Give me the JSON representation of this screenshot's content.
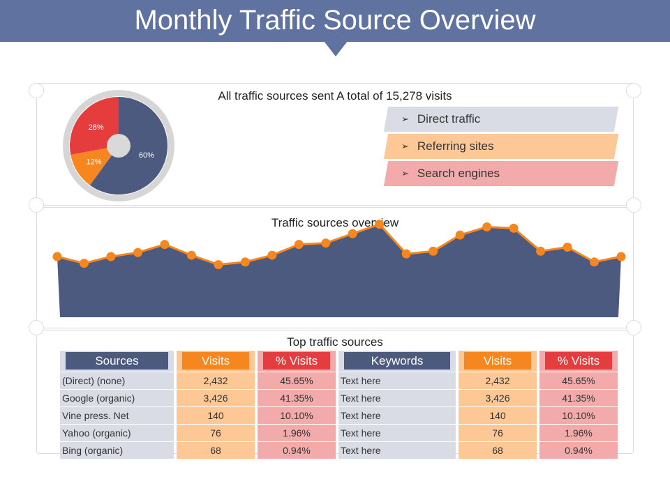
{
  "title": "Monthly Traffic Source Overview",
  "colors": {
    "header": "#5f72a0",
    "navy": "#4b5a7e",
    "orange": "#f6861f",
    "red": "#e53d3d",
    "grey_light": "#d9dce5",
    "orange_light": "#fdc896",
    "red_light": "#f2aaaa"
  },
  "summary": {
    "heading": "All traffic sources sent A total of 15,278 visits"
  },
  "legend": [
    {
      "label": "Direct traffic",
      "color": "#d9dce5"
    },
    {
      "label": "Referring sites",
      "color": "#fdc896"
    },
    {
      "label": "Search engines",
      "color": "#f2aaaa"
    }
  ],
  "overview": {
    "heading": "Traffic sources overview"
  },
  "top_sources": {
    "heading": "Top traffic sources",
    "left_headers": [
      "Sources",
      "Visits",
      "% Visits"
    ],
    "left_rows": [
      [
        "(Direct) (none)",
        "2,432",
        "45.65%"
      ],
      [
        "Google (organic)",
        "3,426",
        "41.35%"
      ],
      [
        "Vine press. Net",
        "140",
        "10.10%"
      ],
      [
        "Yahoo (organic)",
        "76",
        "1.96%"
      ],
      [
        "Bing (organic)",
        "68",
        "0.94%"
      ]
    ],
    "right_headers": [
      "Keywords",
      "Visits",
      "% Visits"
    ],
    "right_rows": [
      [
        "Text here",
        "2,432",
        "45.65%"
      ],
      [
        "Text here",
        "3,426",
        "41.35%"
      ],
      [
        "Text here",
        "140",
        "10.10%"
      ],
      [
        "Text here",
        "76",
        "1.96%"
      ],
      [
        "Text here",
        "68",
        "0.94%"
      ]
    ]
  },
  "chart_data": [
    {
      "type": "pie",
      "title": "",
      "labels": [
        "Direct traffic",
        "Referring sites",
        "Search engines"
      ],
      "values": [
        60,
        12,
        28
      ],
      "value_labels": [
        "60%",
        "12%",
        "28%"
      ],
      "colors": [
        "#4b5a7e",
        "#f6861f",
        "#e53d3d"
      ]
    },
    {
      "type": "area",
      "title": "Traffic sources overview",
      "x": [
        1,
        2,
        3,
        4,
        5,
        6,
        7,
        8,
        9,
        10,
        11,
        12,
        13,
        14,
        15,
        16,
        17,
        18,
        19,
        20,
        21,
        22
      ],
      "values": [
        20,
        15,
        20,
        23,
        29,
        21,
        14,
        16,
        21,
        29,
        30,
        37,
        44,
        22,
        24,
        36,
        42,
        41,
        24,
        27,
        16,
        20
      ],
      "ylim": [
        -25,
        50
      ],
      "xlabel": "",
      "ylabel": "",
      "fill_color": "#4b5a7e",
      "line_color": "#f6861f"
    }
  ]
}
